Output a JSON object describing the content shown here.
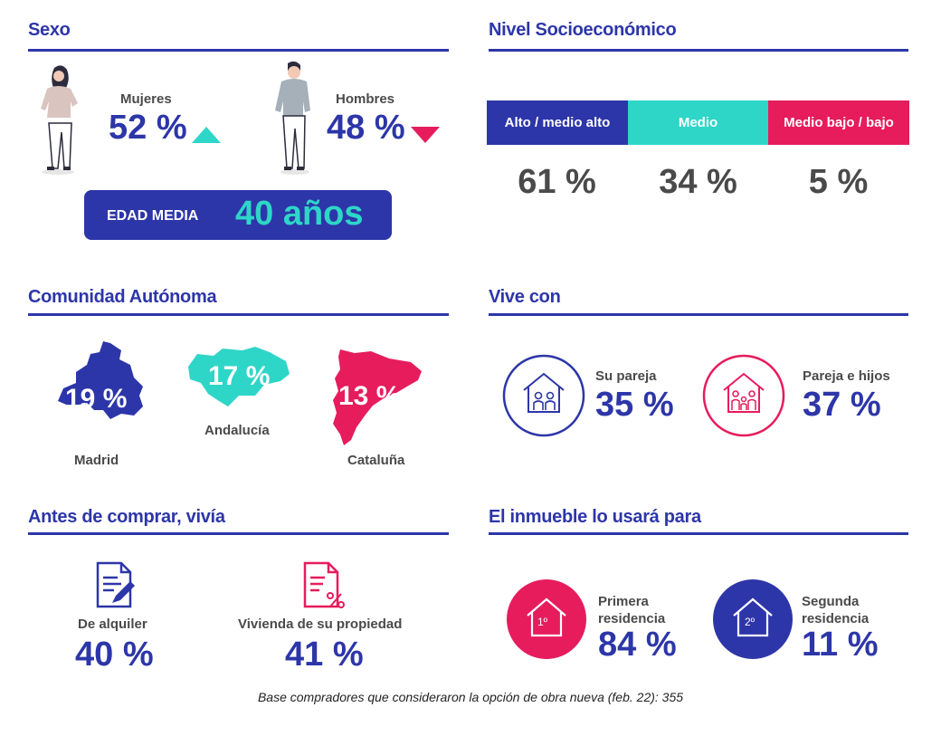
{
  "colors": {
    "blue": "#2d36a8",
    "teal": "#2ed6c8",
    "pink": "#e61c5d",
    "gray": "#4a4a4a"
  },
  "sexo": {
    "title": "Sexo",
    "female": {
      "label": "Mujeres",
      "pct": "52 %",
      "trend": "up"
    },
    "male": {
      "label": "Hombres",
      "pct": "48 %",
      "trend": "down"
    },
    "age_label": "EDAD MEDIA",
    "age_value": "40 años"
  },
  "nse": {
    "title": "Nivel Socioeconómico",
    "segments": [
      {
        "label": "Alto / medio alto",
        "pct": "61 %"
      },
      {
        "label": "Medio",
        "pct": "34 %"
      },
      {
        "label": "Medio bajo / bajo",
        "pct": "5 %"
      }
    ]
  },
  "ccaa": {
    "title": "Comunidad Autónoma",
    "regions": [
      {
        "name": "Madrid",
        "pct": "19 %"
      },
      {
        "name": "Andalucía",
        "pct": "17 %"
      },
      {
        "name": "Cataluña",
        "pct": "13 %"
      }
    ]
  },
  "vive": {
    "title": "Vive con",
    "items": [
      {
        "label": "Su pareja",
        "pct": "35 %"
      },
      {
        "label": "Pareja e hijos",
        "pct": "37 %"
      }
    ]
  },
  "antes": {
    "title": "Antes de comprar, vivía",
    "items": [
      {
        "label": "De alquiler",
        "pct": "40 %"
      },
      {
        "label": "Vivienda de su propiedad",
        "pct": "41 %"
      }
    ]
  },
  "uso": {
    "title": "El inmueble lo usará para",
    "items": [
      {
        "label1": "Primera",
        "label2": "residencia",
        "pct": "84 %",
        "badge": "1º"
      },
      {
        "label1": "Segunda",
        "label2": "residencia",
        "pct": "11 %",
        "badge": "2º"
      }
    ]
  },
  "footnote": "Base compradores que consideraron la opción de obra nueva (feb. 22): 355",
  "chart_data": [
    {
      "type": "table",
      "title": "Sexo",
      "categories": [
        "Mujeres",
        "Hombres"
      ],
      "values": [
        52,
        48
      ],
      "unit": "%",
      "extra": {
        "EDAD MEDIA": "40 años"
      }
    },
    {
      "type": "bar",
      "title": "Nivel Socioeconómico",
      "categories": [
        "Alto / medio alto",
        "Medio",
        "Medio bajo / bajo"
      ],
      "values": [
        61,
        34,
        5
      ],
      "unit": "%"
    },
    {
      "type": "table",
      "title": "Comunidad Autónoma",
      "categories": [
        "Madrid",
        "Andalucía",
        "Cataluña"
      ],
      "values": [
        19,
        17,
        13
      ],
      "unit": "%"
    },
    {
      "type": "table",
      "title": "Vive con",
      "categories": [
        "Su pareja",
        "Pareja e hijos"
      ],
      "values": [
        35,
        37
      ],
      "unit": "%"
    },
    {
      "type": "table",
      "title": "Antes de comprar, vivía",
      "categories": [
        "De alquiler",
        "Vivienda de su propiedad"
      ],
      "values": [
        40,
        41
      ],
      "unit": "%"
    },
    {
      "type": "table",
      "title": "El inmueble lo usará para",
      "categories": [
        "Primera residencia",
        "Segunda residencia"
      ],
      "values": [
        84,
        11
      ],
      "unit": "%"
    }
  ]
}
